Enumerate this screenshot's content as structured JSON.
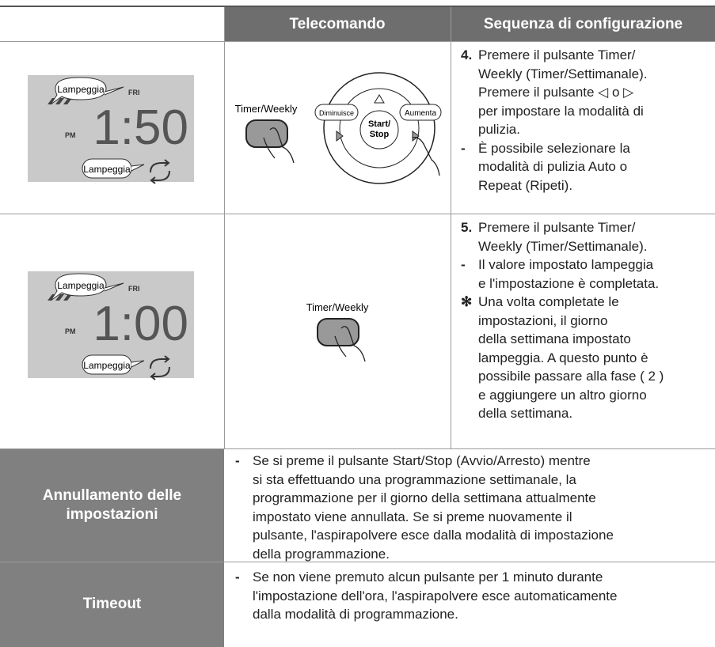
{
  "header": {
    "col2": "Telecomando",
    "col3": "Sequenza di configurazione"
  },
  "rows": [
    {
      "lcd": {
        "bubble_top": "Lampeggia",
        "day": "FRI",
        "ampm": "PM",
        "time": "1:50",
        "bubble_bottom": "Lampeggia"
      },
      "remote": {
        "button": "Timer/Weekly",
        "left": "Diminuisce",
        "right": "Aumenta",
        "center": [
          "Start/",
          "Stop"
        ]
      },
      "items": [
        {
          "marker": "4.",
          "lines": [
            "Premere il pulsante Timer/",
            "Weekly (Timer/Settimanale).",
            "Premere il pulsante ◁ o ▷",
            "per impostare la modalità di",
            "pulizia."
          ]
        },
        {
          "marker": "-",
          "lines": [
            "È possibile selezionare la",
            "modalità di pulizia Auto o",
            "Repeat (Ripeti)."
          ]
        }
      ]
    },
    {
      "lcd": {
        "bubble_top": "Lampeggia",
        "day": "FRI",
        "ampm": "PM",
        "time": "1:00",
        "bubble_bottom": "Lampeggia"
      },
      "remote": {
        "button": "Timer/Weekly"
      },
      "items": [
        {
          "marker": "5.",
          "lines": [
            "Premere il pulsante Timer/",
            "Weekly (Timer/Settimanale)."
          ]
        },
        {
          "marker": "-",
          "lines": [
            "Il valore impostato lampeggia",
            "e l'impostazione è completata."
          ]
        },
        {
          "marker": "✻",
          "lines": [
            "Una volta completate le",
            "impostazioni, il giorno",
            "della settimana impostato",
            "lampeggia. A questo punto è",
            "possibile passare alla fase ( 2 )",
            "e aggiungere un altro giorno",
            "della settimana."
          ]
        }
      ]
    }
  ],
  "notes": [
    {
      "label": "Annullamento delle impostazioni",
      "marker": "-",
      "lines": [
        "Se si preme il pulsante Start/Stop (Avvio/Arresto) mentre",
        "si sta effettuando una programmazione settimanale, la",
        "programmazione per il giorno della settimana attualmente",
        "impostato viene annullata. Se si preme nuovamente il",
        "pulsante, l'aspirapolvere esce dalla modalità di impostazione",
        "della programmazione."
      ]
    },
    {
      "label": "Timeout",
      "marker": "-",
      "lines": [
        "Se non viene premuto alcun pulsante per 1 minuto durante",
        "l'impostazione dell'ora, l'aspirapolvere esce automaticamente",
        "dalla modalità di programmazione."
      ]
    }
  ]
}
